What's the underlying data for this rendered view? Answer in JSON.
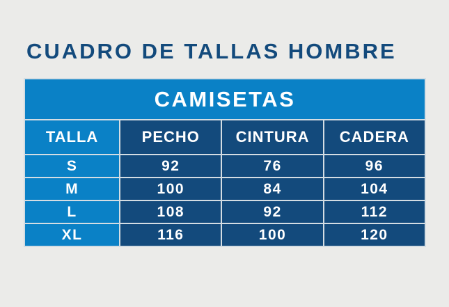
{
  "title": "CUADRO DE TALLAS HOMBRE",
  "chart_data": {
    "type": "table",
    "title": "CUADRO DE TALLAS HOMBRE",
    "group_header": "CAMISETAS",
    "columns": [
      "TALLA",
      "PECHO",
      "CINTURA",
      "CADERA"
    ],
    "rows": [
      [
        "S",
        92,
        76,
        96
      ],
      [
        "M",
        100,
        84,
        104
      ],
      [
        "L",
        108,
        92,
        112
      ],
      [
        "XL",
        116,
        100,
        120
      ]
    ],
    "layout_hints": {
      "grid": "light 2px separators between cells",
      "first_column_style": "accent blue",
      "data_cells_style": "navy"
    }
  },
  "colors": {
    "accent_blue": "#0a81c6",
    "navy": "#134a7c",
    "separator": "#d4dde3",
    "page_bg": "#ebebe9",
    "text_light": "#ffffff",
    "title_color": "#134a7c"
  }
}
